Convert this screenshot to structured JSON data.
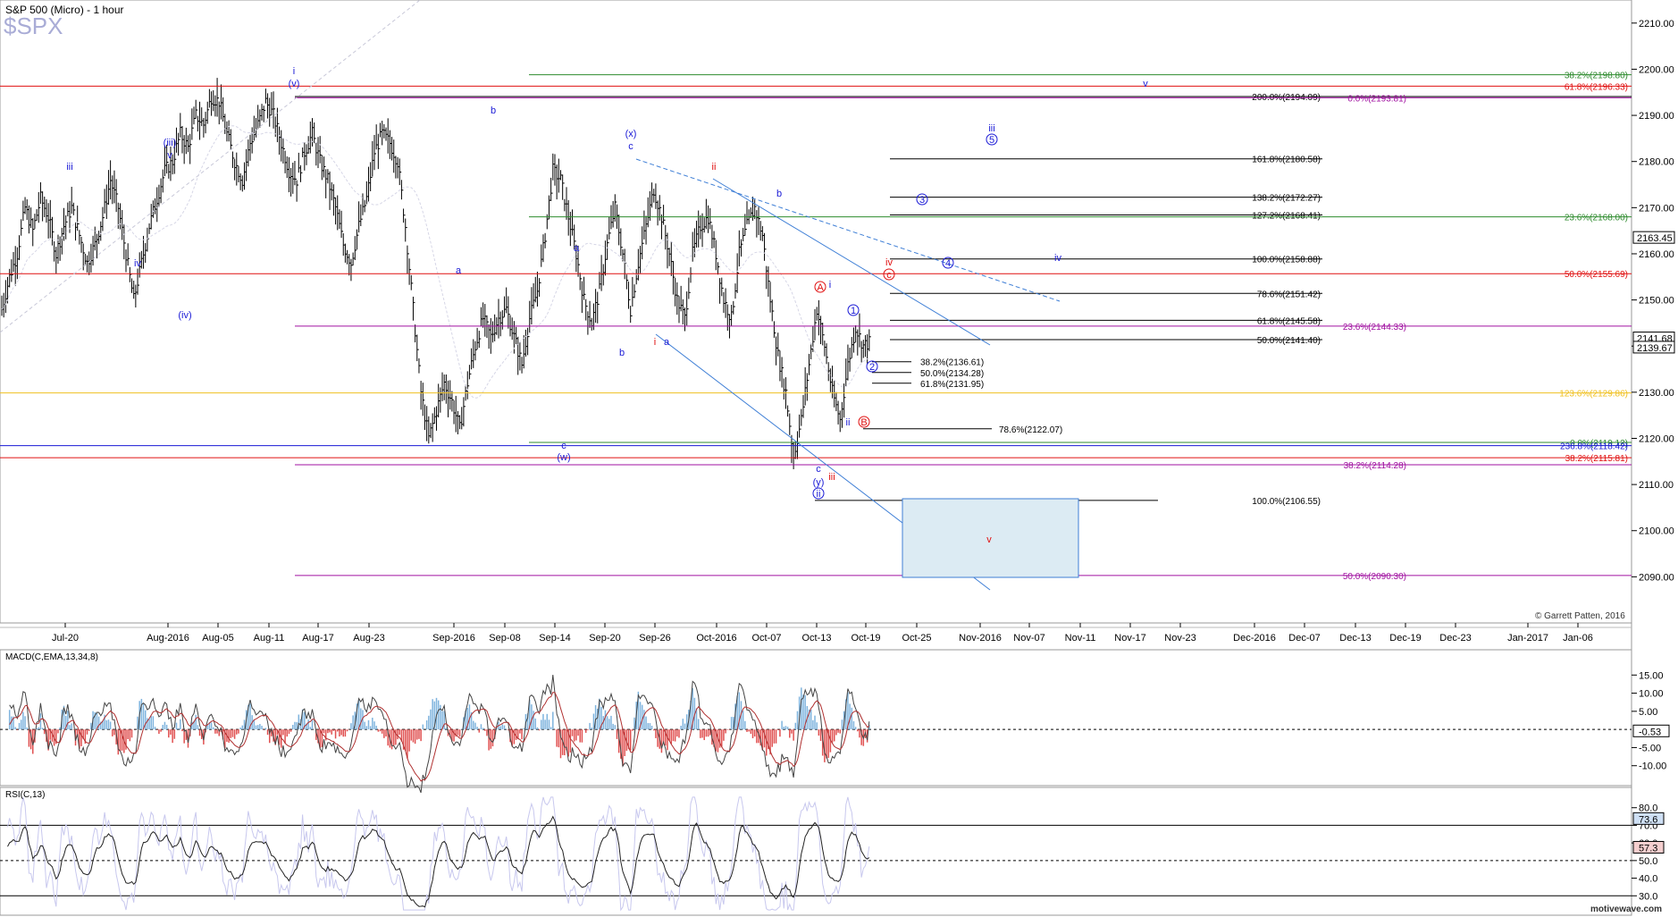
{
  "header": {
    "title": "S&P 500 (Micro) - 1 hour",
    "symbol": "$SPX"
  },
  "copyright": "© Garrett Patten, 2016",
  "footer": "motivewave.com",
  "colors": {
    "bar": "#000000",
    "wave_blue": "#1a1ad6",
    "wave_red": "#e01010",
    "fib_green": "#2e8b2e",
    "fib_purple": "#a010a0",
    "fib_red": "#e01010",
    "fib_yellow": "#f0c020",
    "trend_blue": "#3f7fd6",
    "target_box_fill": "#dcebf3",
    "macd_up": "#7fb4de",
    "macd_down": "#e05050"
  },
  "chart_data": [
    {
      "type": "ohlc_bars",
      "title": "S&P 500 (Micro) - 1 hour",
      "ylim": [
        2080,
        2215
      ],
      "y_ticks": [
        "2090.00",
        "2100.00",
        "2110.00",
        "2120.00",
        "2130.00",
        "2140.00",
        "2150.00",
        "2160.00",
        "2170.00",
        "2180.00",
        "2190.00",
        "2200.00",
        "2210.00"
      ],
      "x_tick_labels": [
        "Jul-20",
        "Aug-2016",
        "Aug-05",
        "Aug-11",
        "Aug-17",
        "Aug-23",
        "Sep-2016",
        "Sep-08",
        "Sep-14",
        "Sep-20",
        "Sep-26",
        "Oct-2016",
        "Oct-07",
        "Oct-13",
        "Oct-19",
        "Oct-25",
        "Nov-2016",
        "Nov-07",
        "Nov-11",
        "Nov-17",
        "Nov-23",
        "Dec-2016",
        "Dec-07",
        "Dec-13",
        "Dec-19",
        "Dec-23",
        "Jan-2017",
        "Jan-06"
      ],
      "price_path": [
        2148,
        2155,
        2160,
        2170,
        2165,
        2172,
        2168,
        2160,
        2166,
        2170,
        2164,
        2158,
        2162,
        2168,
        2176,
        2170,
        2160,
        2150,
        2158,
        2166,
        2172,
        2178,
        2180,
        2186,
        2183,
        2190,
        2188,
        2194,
        2193,
        2186,
        2180,
        2176,
        2184,
        2188,
        2193,
        2190,
        2184,
        2178,
        2176,
        2182,
        2186,
        2180,
        2176,
        2170,
        2162,
        2158,
        2166,
        2172,
        2182,
        2186,
        2184,
        2180,
        2166,
        2148,
        2130,
        2120,
        2126,
        2132,
        2128,
        2122,
        2132,
        2140,
        2146,
        2142,
        2146,
        2148,
        2142,
        2136,
        2146,
        2152,
        2164,
        2178,
        2176,
        2168,
        2160,
        2150,
        2145,
        2152,
        2162,
        2170,
        2160,
        2148,
        2158,
        2166,
        2174,
        2168,
        2160,
        2150,
        2146,
        2160,
        2166,
        2168,
        2160,
        2150,
        2146,
        2160,
        2166,
        2170,
        2164,
        2150,
        2138,
        2130,
        2116,
        2124,
        2136,
        2148,
        2140,
        2130,
        2124,
        2136,
        2144,
        2140,
        2141
      ],
      "last_price_labels": [
        "2163.45",
        "2141.68",
        "2139.67"
      ],
      "levels": [
        {
          "label": "38.2%(2198.80)",
          "value": 2198.8,
          "color": "green"
        },
        {
          "label": "61.8%(2196.33)",
          "value": 2196.33,
          "color": "red"
        },
        {
          "label": "200.0%(2194.09)",
          "value": 2194.09,
          "color": "black"
        },
        {
          "label": "0.0%(2193.81)",
          "value": 2193.81,
          "color": "purple"
        },
        {
          "label": "161.8%(2180.58)",
          "value": 2180.58,
          "color": "black"
        },
        {
          "label": "138.2%(2172.27)",
          "value": 2172.27,
          "color": "black"
        },
        {
          "label": "127.2%(2168.41)",
          "value": 2168.41,
          "color": "black"
        },
        {
          "label": "23.6%(2168.00)",
          "value": 2168.0,
          "color": "green"
        },
        {
          "label": "100.0%(2158.88)",
          "value": 2158.88,
          "color": "black"
        },
        {
          "label": "50.0%(2155.69)",
          "value": 2155.69,
          "color": "red"
        },
        {
          "label": "78.6%(2151.42)",
          "value": 2151.42,
          "color": "black"
        },
        {
          "label": "61.8%(2145.58)",
          "value": 2145.58,
          "color": "black"
        },
        {
          "label": "23.6%(2144.33)",
          "value": 2144.33,
          "color": "purple"
        },
        {
          "label": "50.0%(2141.40)",
          "value": 2141.4,
          "color": "black"
        },
        {
          "label": "38.2%(2136.61)",
          "value": 2136.61,
          "color": "black"
        },
        {
          "label": "50.0%(2134.28)",
          "value": 2134.28,
          "color": "black"
        },
        {
          "label": "61.8%(2131.95)",
          "value": 2131.95,
          "color": "black"
        },
        {
          "label": "123.6%(2129.86)",
          "value": 2129.86,
          "color": "yellow"
        },
        {
          "label": "78.6%(2122.07)",
          "value": 2122.07,
          "color": "black"
        },
        {
          "label": "0.0%(2119.12)",
          "value": 2119.12,
          "color": "green"
        },
        {
          "label": "236.8%(2118.42)",
          "value": 2118.42,
          "color": "blue"
        },
        {
          "label": "38.2%(2115.81)",
          "value": 2115.81,
          "color": "red"
        },
        {
          "label": "38.2%(2114.28)",
          "value": 2114.28,
          "color": "purple"
        },
        {
          "label": "100.0%(2106.55)",
          "value": 2106.55,
          "color": "black"
        },
        {
          "label": "50.0%(2090.30)",
          "value": 2090.3,
          "color": "purple"
        }
      ],
      "wave_labels": [
        "iii",
        "iv",
        "(iii)",
        "v",
        "(iv)",
        "i",
        "(v)",
        "b",
        "a",
        "(x)",
        "c",
        "b",
        "a",
        "(w)",
        "c",
        "i",
        "a",
        "ii",
        "b",
        "iv",
        "c",
        "A",
        "i",
        "1",
        "2",
        "B",
        "ii",
        "c",
        "(y)",
        "iii",
        "ii",
        "iii",
        "5",
        "3",
        "4",
        "iv",
        "v",
        "v"
      ]
    },
    {
      "type": "line",
      "title": "MACD(C,EMA,13,34,8)",
      "ylim": [
        -15,
        20
      ],
      "y_ticks": [
        "15.00",
        "10.00",
        "5.00",
        "-5.00",
        "-10.00"
      ],
      "last_value_label": "-0.53"
    },
    {
      "type": "line",
      "title": "RSI(C,13)",
      "ylim": [
        20,
        90
      ],
      "y_ticks": [
        "80.0",
        "70.0",
        "60.0",
        "50.0",
        "40.0",
        "30.0"
      ],
      "last_value_labels": [
        "73.6",
        "57.3"
      ]
    }
  ]
}
